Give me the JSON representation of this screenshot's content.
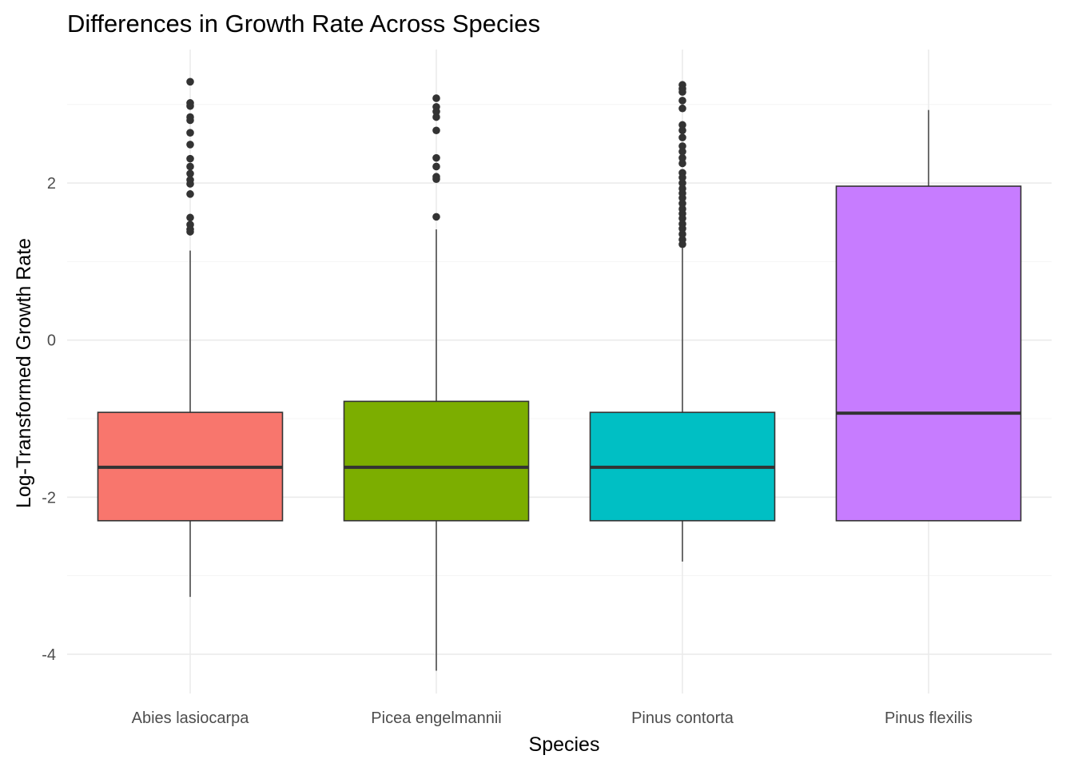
{
  "chart_data": {
    "type": "box",
    "title": "Differences in Growth Rate Across Species",
    "xlabel": "Species",
    "ylabel": "Log-Transformed Growth Rate",
    "ylim": [
      -4.5,
      3.7
    ],
    "yticks": [
      -4,
      -2,
      0,
      2
    ],
    "grid": true,
    "legend": "none",
    "categories": [
      "Abies lasiocarpa",
      "Picea engelmannii",
      "Pinus contorta",
      "Pinus flexilis"
    ],
    "boxes": [
      {
        "category": "Abies lasiocarpa",
        "color": "#F8766D",
        "whisker_low": -3.27,
        "q1": -2.3,
        "median": -1.62,
        "q3": -0.92,
        "whisker_high": 1.14,
        "outliers": [
          3.29,
          3.02,
          2.98,
          2.84,
          2.8,
          2.64,
          2.49,
          2.31,
          2.21,
          2.12,
          2.04,
          1.99,
          1.86,
          1.56,
          1.47,
          1.41,
          1.38
        ]
      },
      {
        "category": "Picea engelmannii",
        "color": "#7CAE00",
        "whisker_low": -4.21,
        "q1": -2.3,
        "median": -1.62,
        "q3": -0.78,
        "whisker_high": 1.41,
        "outliers": [
          3.08,
          2.97,
          2.91,
          2.84,
          2.67,
          2.32,
          2.21,
          2.08,
          2.05,
          1.57
        ]
      },
      {
        "category": "Pinus contorta",
        "color": "#00BFC4",
        "whisker_low": -2.82,
        "q1": -2.3,
        "median": -1.62,
        "q3": -0.92,
        "whisker_high": 1.17,
        "outliers": [
          3.25,
          3.2,
          3.16,
          3.05,
          2.95,
          2.74,
          2.67,
          2.58,
          2.47,
          2.4,
          2.32,
          2.25,
          2.13,
          2.07,
          2.0,
          1.93,
          1.87,
          1.81,
          1.74,
          1.67,
          1.61,
          1.55,
          1.48,
          1.42,
          1.35,
          1.28,
          1.22
        ]
      },
      {
        "category": "Pinus flexilis",
        "color": "#C77CFF",
        "whisker_low": -2.3,
        "q1": -2.3,
        "median": -0.93,
        "q3": 1.96,
        "whisker_high": 2.93,
        "outliers": []
      }
    ]
  }
}
